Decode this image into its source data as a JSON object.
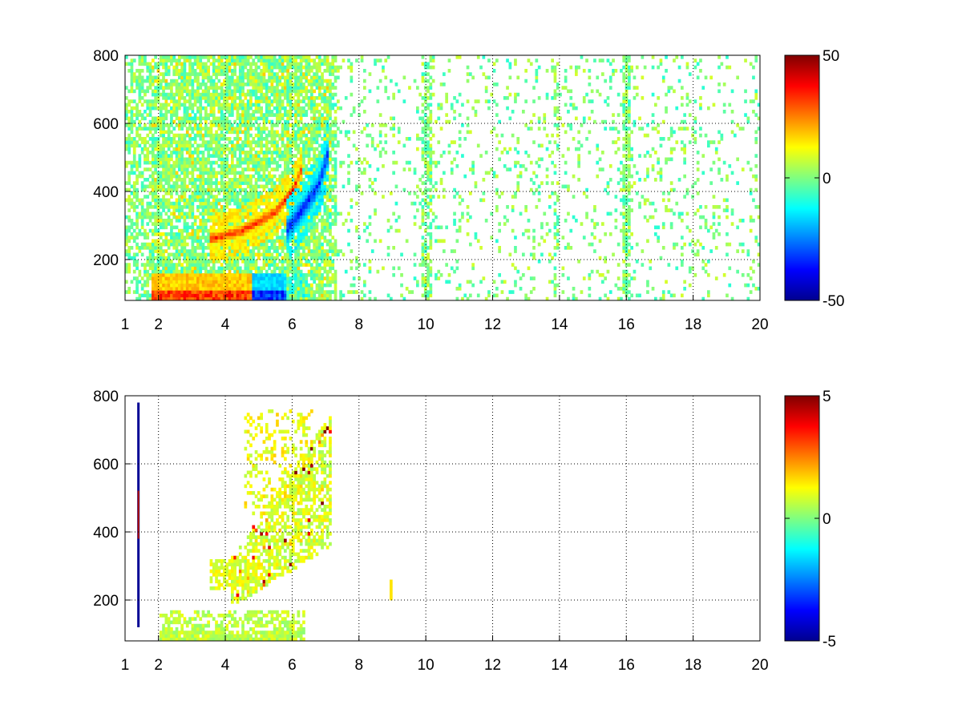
{
  "chart_data": [
    {
      "type": "heatmap",
      "title": "",
      "xlabel": "",
      "ylabel": "",
      "xlim": [
        1,
        20
      ],
      "ylim": [
        80,
        800
      ],
      "xticks": [
        1,
        2,
        4,
        6,
        8,
        10,
        12,
        14,
        16,
        18,
        20
      ],
      "yticks": [
        200,
        400,
        600,
        800
      ],
      "grid": true,
      "colormap": "jet",
      "clim": [
        -50,
        50
      ],
      "colorbar_ticks": [
        50,
        0,
        -50
      ],
      "features": [
        {
          "kind": "ridge",
          "sign": "positive",
          "points": [
            [
              3.5,
              260
            ],
            [
              4.5,
              285
            ],
            [
              5.5,
              340
            ],
            [
              6,
              400
            ],
            [
              6.3,
              470
            ]
          ],
          "peak_value": 40
        },
        {
          "kind": "ridge",
          "sign": "negative",
          "points": [
            [
              5.8,
              280
            ],
            [
              6.4,
              360
            ],
            [
              6.8,
              420
            ],
            [
              7.1,
              520
            ]
          ],
          "peak_value": -40
        },
        {
          "kind": "band",
          "sign": "positive",
          "x_range": [
            1.8,
            4.8
          ],
          "y_range": [
            80,
            160
          ],
          "peak_value": 40
        },
        {
          "kind": "band",
          "sign": "negative",
          "x_range": [
            4.8,
            5.8
          ],
          "y_range": [
            80,
            160
          ],
          "peak_value": -40
        }
      ]
    },
    {
      "type": "heatmap",
      "title": "",
      "xlabel": "",
      "ylabel": "",
      "xlim": [
        1,
        20
      ],
      "ylim": [
        80,
        800
      ],
      "xticks": [
        1,
        2,
        4,
        6,
        8,
        10,
        12,
        14,
        16,
        18,
        20
      ],
      "yticks": [
        200,
        400,
        600,
        800
      ],
      "grid": true,
      "colormap": "jet",
      "clim": [
        -5,
        5
      ],
      "colorbar_ticks": [
        5,
        0,
        -5
      ],
      "features": [
        {
          "kind": "cluster",
          "x_range": [
            3.5,
            7.2
          ],
          "y_range": [
            180,
            760
          ],
          "typical_value": 0.5
        },
        {
          "kind": "band",
          "x_range": [
            2,
            6.4
          ],
          "y_range": [
            80,
            170
          ],
          "typical_value": 0.3
        },
        {
          "kind": "line",
          "x": 1.4,
          "y_range": [
            120,
            780
          ],
          "value_range": [
            -5,
            5
          ]
        }
      ]
    }
  ]
}
